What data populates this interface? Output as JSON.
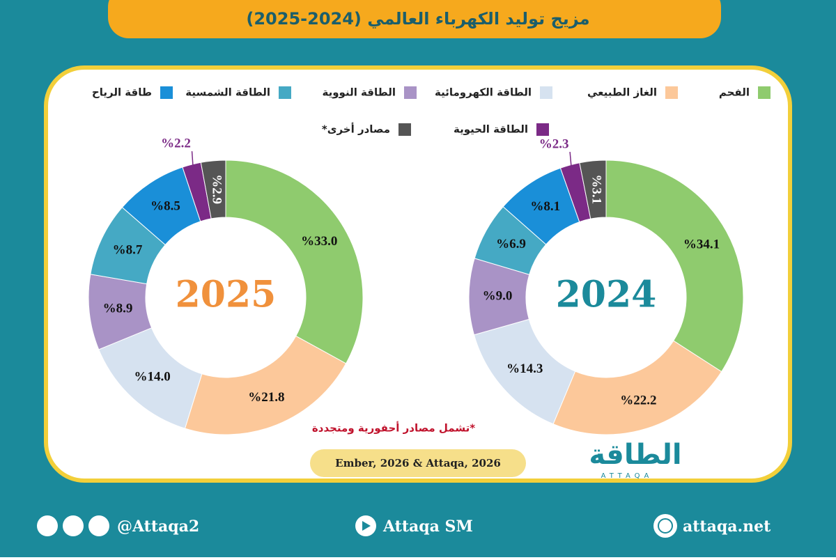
{
  "header": {
    "title": "مزيج توليد الكهرباء العالمي (2024-2025)"
  },
  "legend": {
    "items": [
      {
        "name": "الفحم",
        "color": "#8fcb6e"
      },
      {
        "name": "الغاز الطبيعي",
        "color": "#fcc89a"
      },
      {
        "name": "الطاقة الكهرومائية",
        "color": "#d6e2f0"
      },
      {
        "name": "الطاقة النووية",
        "color": "#a993c6"
      },
      {
        "name": "الطاقة الشمسية",
        "color": "#45a9c4"
      },
      {
        "name": "طاقة الرياح",
        "color": "#1a8fd8"
      },
      {
        "name": "الطاقة الحيوية",
        "color": "#7b2a86"
      },
      {
        "name": "مصادر أخرى*",
        "color": "#555555"
      }
    ]
  },
  "chart_data": [
    {
      "type": "donut",
      "title": "2025",
      "title_color": "#f0913c",
      "values": [
        33.0,
        21.8,
        14.0,
        8.9,
        8.7,
        8.5,
        2.2,
        2.9
      ],
      "value_labels": [
        "%33.0",
        "%21.8",
        "%14.0",
        "%8.9",
        "%8.7",
        "%8.5",
        "%2.2",
        "%2.9"
      ]
    },
    {
      "type": "donut",
      "title": "2024",
      "title_color": "#1b8a9b",
      "values": [
        34.1,
        22.2,
        14.3,
        9.0,
        6.9,
        8.1,
        2.3,
        3.1
      ],
      "value_labels": [
        "%34.1",
        "%22.2",
        "%14.3",
        "%9.0",
        "%6.9",
        "%8.1",
        "%2.3",
        "%3.1"
      ]
    }
  ],
  "note": "*تشمل مصادر أحفورية ومتجددة",
  "source": "Ember, 2026 & Attaqa, 2026",
  "logo": {
    "name": "الطاقة",
    "latin": "ATTAQA"
  },
  "footer": {
    "social": "@Attaqa2",
    "youtube": "Attaqa SM",
    "website": "attaqa.net"
  }
}
